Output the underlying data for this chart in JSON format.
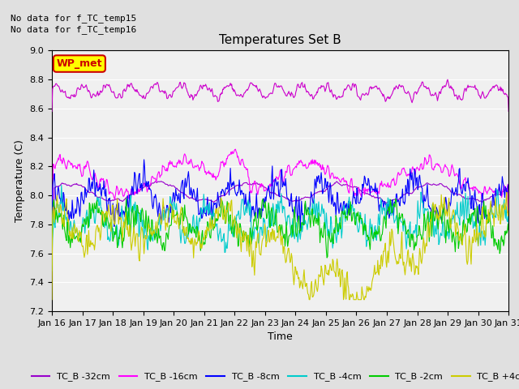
{
  "title": "Temperatures Set B",
  "xlabel": "Time",
  "ylabel": "Temperature (C)",
  "ylim": [
    7.2,
    9.0
  ],
  "yticks": [
    7.2,
    7.4,
    7.6,
    7.8,
    8.0,
    8.2,
    8.4,
    8.6,
    8.8,
    9.0
  ],
  "xtick_labels": [
    "Jan 16",
    "Jan 17",
    "Jan 18",
    "Jan 19",
    "Jan 20",
    "Jan 21",
    "Jan 22",
    "Jan 23",
    "Jan 24",
    "Jan 25",
    "Jan 26",
    "Jan 27",
    "Jan 28",
    "Jan 29",
    "Jan 30",
    "Jan 31"
  ],
  "annotation_text_1": "No data for f_TC_temp15",
  "annotation_text_2": "No data for f_TC_temp16",
  "wp_met_label": "WP_met",
  "series": [
    {
      "label": "TC_B -32cm",
      "color": "#9900cc"
    },
    {
      "label": "TC_B -16cm",
      "color": "#ff00ff"
    },
    {
      "label": "TC_B -8cm",
      "color": "#0000ff"
    },
    {
      "label": "TC_B -4cm",
      "color": "#00cccc"
    },
    {
      "label": "TC_B -2cm",
      "color": "#00cc00"
    },
    {
      "label": "TC_B +4cm",
      "color": "#cccc00"
    }
  ],
  "wp_met_line_color": "#cc00cc",
  "wp_met_color": "#cc0000",
  "wp_met_bg": "#ffff00",
  "background_color": "#e0e0e0",
  "plot_bg_color": "#f0f0f0",
  "grid_color": "#ffffff",
  "title_fontsize": 11,
  "label_fontsize": 9,
  "tick_fontsize": 8,
  "legend_fontsize": 8
}
